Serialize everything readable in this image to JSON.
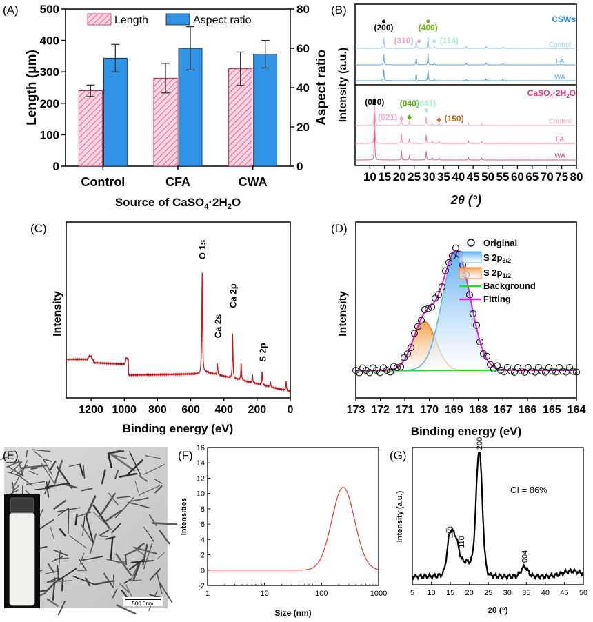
{
  "chart_data": [
    {
      "panel": "(A)",
      "type": "bar",
      "xlabel": "Source of CaSO4·2H2O",
      "xlabel_parts": {
        "pre": "Source of CaSO",
        "sub1": "4",
        "mid": "·2H",
        "sub2": "2",
        "post": "O"
      },
      "ylabel": "Length (μm)",
      "y2label": "Aspect ratio",
      "ylim": [
        0,
        500
      ],
      "y2lim": [
        0,
        80
      ],
      "yticks": [
        0,
        100,
        200,
        300,
        400,
        500
      ],
      "y2ticks": [
        0,
        20,
        40,
        60,
        80
      ],
      "categories": [
        "Control",
        "CFA",
        "CWA"
      ],
      "series": [
        {
          "name": "Length",
          "axis": "left",
          "values": [
            240,
            280,
            310
          ],
          "errors": [
            18,
            47,
            53
          ]
        },
        {
          "name": "Aspect ratio",
          "axis": "right",
          "values": [
            55,
            60,
            57
          ],
          "errors": [
            7,
            11,
            7
          ]
        }
      ]
    },
    {
      "panel": "(B)",
      "type": "line",
      "xlabel": "2θ (°)",
      "ylabel": "Intensity (a.u.)",
      "xlim": [
        5,
        80
      ],
      "xticks": [
        10,
        15,
        20,
        25,
        30,
        35,
        40,
        45,
        50,
        55,
        60,
        65,
        70,
        75,
        80
      ],
      "top_group": {
        "title": "CSWs",
        "series": [
          "Control",
          "FA",
          "WA"
        ],
        "peaks": [
          {
            "label": "(200)",
            "x": 14.7
          },
          {
            "label": "(310)",
            "x": 25.7
          },
          {
            "label": "(400)",
            "x": 29.7
          },
          {
            "label": "(114)",
            "x": 31.8
          }
        ]
      },
      "bottom_group": {
        "title": "CaSO4·2H2O",
        "title_parts": {
          "pre": "CaSO",
          "sub1": "4",
          "mid": "·2H",
          "sub2": "2",
          "post": "O"
        },
        "series": [
          "Control",
          "FA",
          "WA"
        ],
        "peaks": [
          {
            "label": "(020)",
            "x": 11.6
          },
          {
            "label": "(021)",
            "x": 20.7
          },
          {
            "label": "(040)",
            "x": 23.4
          },
          {
            "label": "(041)",
            "x": 29.1
          },
          {
            "label": "(150)",
            "x": 33.4
          }
        ]
      }
    },
    {
      "panel": "(C)",
      "type": "line",
      "xlabel": "Binding energy (eV)",
      "ylabel": "Intensity",
      "xlim": [
        1350,
        0
      ],
      "xticks": [
        1200,
        1000,
        800,
        600,
        400,
        200,
        0
      ],
      "peaks": [
        {
          "label": "O 1s",
          "x": 531
        },
        {
          "label": "Ca 2s",
          "x": 439
        },
        {
          "label": "Ca 2p",
          "x": 347
        },
        {
          "label": "S 2p",
          "x": 169
        }
      ]
    },
    {
      "panel": "(D)",
      "type": "line",
      "xlabel": "Binding energy (eV)",
      "ylabel": "Intensity",
      "xlim": [
        173,
        164
      ],
      "xticks": [
        173,
        172,
        171,
        170,
        169,
        168,
        167,
        166,
        165,
        164
      ],
      "legend": [
        "Original",
        "S 2p3/2",
        "S 2p1/2",
        "Background",
        "Fitting"
      ],
      "legend_parts": {
        "s32_pre": "S 2p",
        "s32_sub": "3/2",
        "s12_pre": "S 2p",
        "s12_sub": "1/2"
      },
      "components": [
        {
          "name": "S 2p3/2",
          "center": 168.9,
          "height": 1.0,
          "fwhm": 1.35
        },
        {
          "name": "S 2p1/2",
          "center": 170.2,
          "height": 0.41,
          "fwhm": 1.1
        }
      ]
    },
    {
      "panel": "(E)",
      "type": "image",
      "scale_bar": "500.0nm"
    },
    {
      "panel": "(F)",
      "type": "line",
      "xlabel": "Size (nm)",
      "ylabel": "Intensities",
      "xscale": "log",
      "xlim": [
        1,
        1000
      ],
      "xticks": [
        1,
        10,
        100,
        1000
      ],
      "ylim": [
        -2,
        16
      ],
      "yticks": [
        -2,
        0,
        2,
        4,
        6,
        8,
        10,
        12,
        14,
        16
      ],
      "peak": {
        "x": 240,
        "y": 10.8
      }
    },
    {
      "panel": "(G)",
      "type": "line",
      "xlabel": "2θ (°)",
      "ylabel": "Intensity (a.u.)",
      "xlim": [
        5,
        50
      ],
      "xticks": [
        5,
        10,
        15,
        20,
        25,
        30,
        35,
        40,
        45,
        50
      ],
      "annotation": "CI = 86%",
      "peaks": [
        {
          "label": "1-10",
          "display": "11̅0",
          "x": 14.9
        },
        {
          "label": "110",
          "x": 16.4
        },
        {
          "label": "200",
          "x": 22.6
        },
        {
          "label": "004",
          "x": 34.5
        }
      ]
    }
  ],
  "colors": {
    "length_hatch": "#d6457d",
    "length_fill": "#ffd1dd",
    "aspect_fill": "#2f93e6",
    "csws_title": "#1e88e5",
    "gypsum_title": "#e8336e",
    "xps_survey": "#c9181e",
    "fit_line": "#e020d0",
    "background_line": "#22dd22",
    "s32_fill": "#a8d4f5",
    "s12_fill": "#f7b77c",
    "dls_line": "#e53935"
  }
}
